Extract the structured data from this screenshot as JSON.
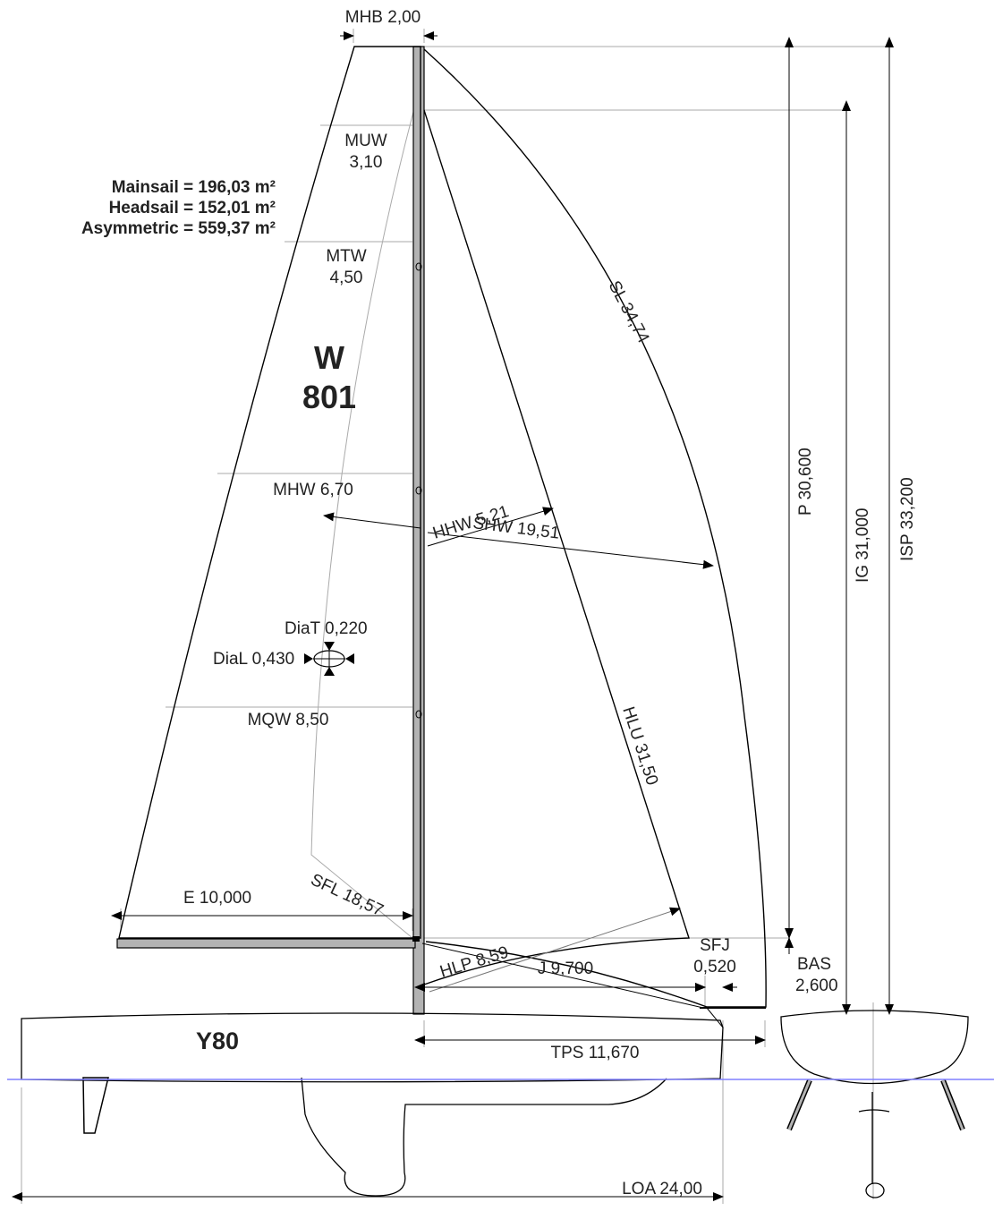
{
  "areas": {
    "mainsail": "Mainsail = 196,03 m²",
    "headsail": "Headsail = 152,01 m²",
    "asymmetric": "Asymmetric = 559,37 m²"
  },
  "sail_marks": {
    "letter": "W",
    "number": "801"
  },
  "hull_name": "Y80",
  "labels": {
    "mhb": "MHB 2,00",
    "muw_name": "MUW",
    "muw_value": "3,10",
    "mtw_name": "MTW",
    "mtw_value": "4,50",
    "mhw": "MHW 6,70",
    "mqw": "MQW 8,50",
    "diat": "DiaT 0,220",
    "dial": "DiaL 0,430",
    "e": "E 10,000",
    "sfl": "SFL 18,57",
    "sl": "SL 34,74",
    "hhw": "HHW 5,21",
    "shw": "SHW 19,51",
    "hlu": "HLU 31,50",
    "hlp": "HLP 8,59",
    "j": "J 9,700",
    "sfj_name": "SFJ",
    "sfj_value": "0,520",
    "bas_name": "BAS",
    "bas_value": "2,600",
    "tps": "TPS 11,670",
    "loa": "LOA 24,00",
    "p": "P 30,600",
    "ig": "IG 31,000",
    "isp": "ISP 33,200"
  },
  "colors": {
    "line": "#000000",
    "dimension": "#aaaaaa",
    "spar": "#b3b3b3",
    "waterline": "#8080ff"
  }
}
